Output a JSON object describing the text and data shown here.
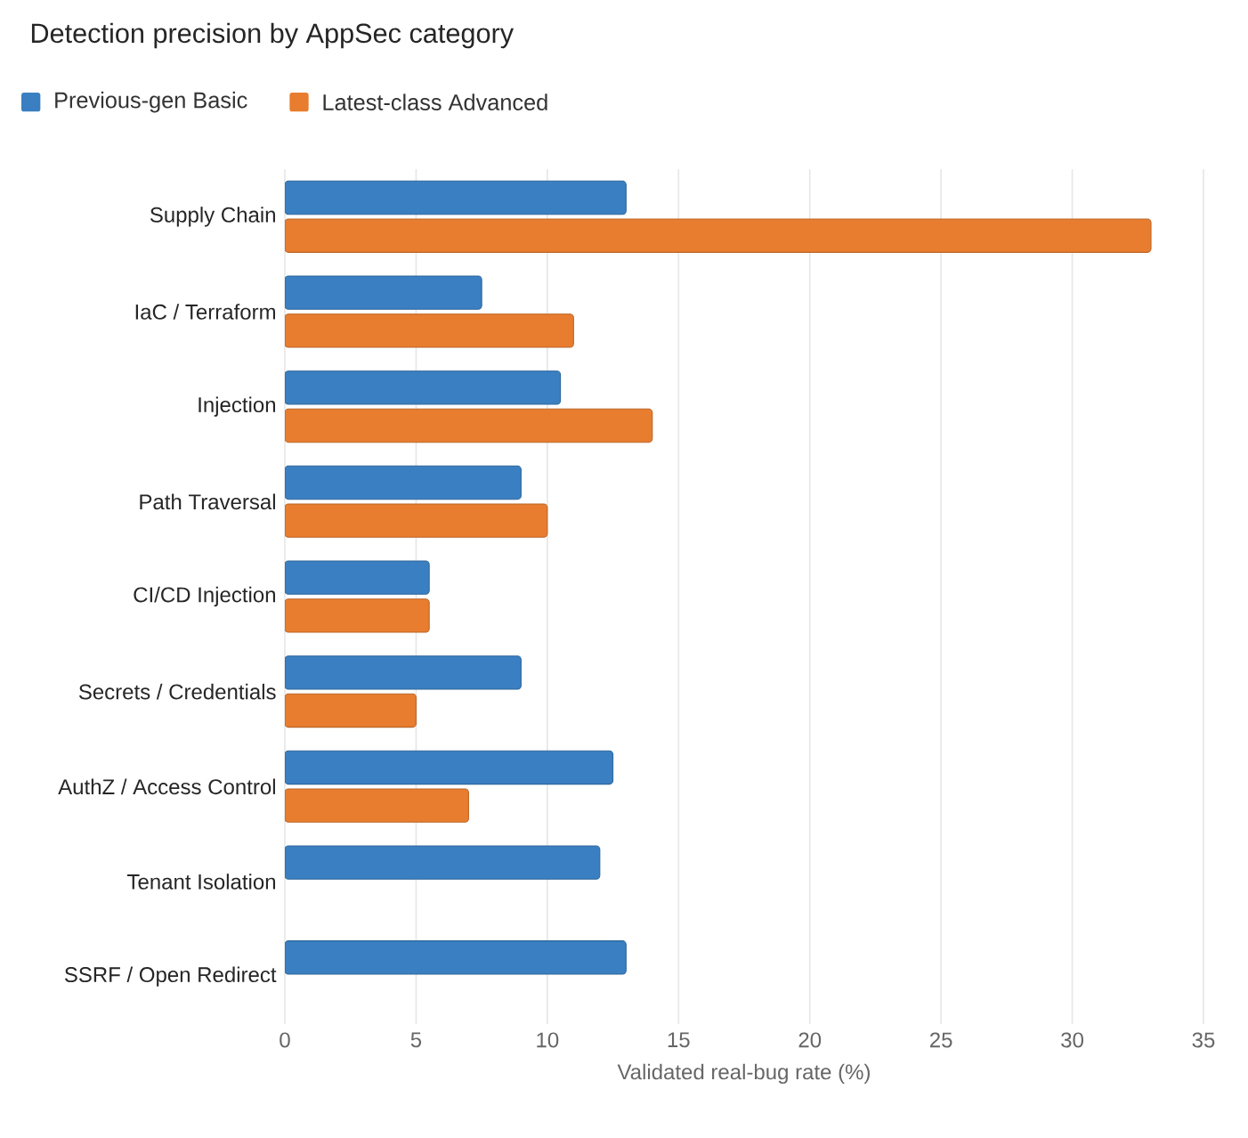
{
  "chart_data": {
    "type": "bar",
    "orientation": "horizontal",
    "title": "Detection precision by AppSec category",
    "xlabel": "Validated real-bug rate (%)",
    "categories": [
      "Supply Chain",
      "IaC / Terraform",
      "Injection",
      "Path Traversal",
      "CI/CD Injection",
      "Secrets / Credentials",
      "AuthZ / Access Control",
      "Tenant Isolation",
      "SSRF / Open Redirect"
    ],
    "series": [
      {
        "name": "Previous-gen Basic",
        "color": "#3a7fc1",
        "values": [
          13,
          7.5,
          10.5,
          9,
          5.5,
          9,
          12.5,
          12,
          13
        ]
      },
      {
        "name": "Latest-class Advanced",
        "color": "#e87d2f",
        "values": [
          33,
          11,
          14,
          10,
          5.5,
          5,
          7,
          null,
          null
        ]
      }
    ],
    "xlim": [
      0,
      35
    ],
    "xticks": [
      0,
      5,
      10,
      15,
      20,
      25,
      30,
      35
    ],
    "grid": "x",
    "legend": "top left"
  }
}
